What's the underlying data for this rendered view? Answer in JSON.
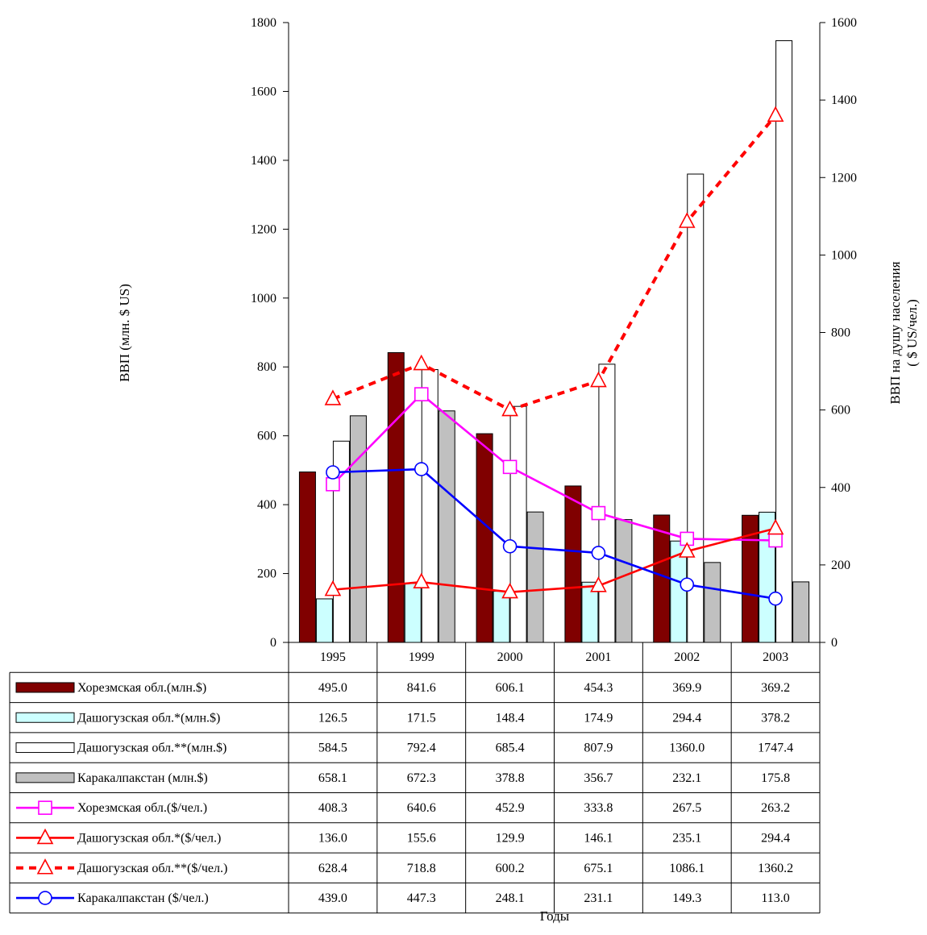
{
  "chart_data": {
    "type": "bar",
    "categories": [
      "1995",
      "1999",
      "2000",
      "2001",
      "2002",
      "2003"
    ],
    "xlabel": "Годы",
    "ylabel": "ВВП (млн. $ US)",
    "y2label_line1": "ВВП на душу населения",
    "y2label_line2": "( $ US/чел.)",
    "ylim": [
      0,
      1800
    ],
    "y2lim": [
      0,
      1600
    ],
    "yticks": [
      0,
      200,
      400,
      600,
      800,
      1000,
      1200,
      1400,
      1600,
      1800
    ],
    "y2ticks": [
      0,
      200,
      400,
      600,
      800,
      1000,
      1200,
      1400,
      1600
    ],
    "grid": false,
    "legend": "data-table-below",
    "series": [
      {
        "name": "Хорезмская обл.(млн.$)",
        "kind": "bar",
        "axis": "left",
        "color": "#800000",
        "values": [
          "495.0",
          "841.6",
          "606.1",
          "454.3",
          "369.9",
          "369.2"
        ]
      },
      {
        "name": "Дашогузская обл.*(млн.$)",
        "kind": "bar",
        "axis": "left",
        "color": "#ccffff",
        "values": [
          "126.5",
          "171.5",
          "148.4",
          "174.9",
          "294.4",
          "378.2"
        ]
      },
      {
        "name": "Дашогузская обл.**(млн.$)",
        "kind": "bar",
        "axis": "left",
        "color": "#ffffff",
        "values": [
          "584.5",
          "792.4",
          "685.4",
          "807.9",
          "1360.0",
          "1747.4"
        ]
      },
      {
        "name": "Каракалпакстан (млн.$)",
        "kind": "bar",
        "axis": "left",
        "color": "#c0c0c0",
        "values": [
          "658.1",
          "672.3",
          "378.8",
          "356.7",
          "232.1",
          "175.8"
        ]
      },
      {
        "name": "Хорезмская обл.($/чел.)",
        "kind": "line",
        "axis": "right",
        "color": "#ff00ff",
        "marker": "square",
        "dash": false,
        "values": [
          "408.3",
          "640.6",
          "452.9",
          "333.8",
          "267.5",
          "263.2"
        ]
      },
      {
        "name": "Дашогузская обл.*($/чел.)",
        "kind": "line",
        "axis": "right",
        "color": "#ff0000",
        "marker": "triangle",
        "dash": false,
        "values": [
          "136.0",
          "155.6",
          "129.9",
          "146.1",
          "235.1",
          "294.4"
        ]
      },
      {
        "name": "Дашогузская обл.**($/чел.)",
        "kind": "line",
        "axis": "right",
        "color": "#ff0000",
        "marker": "triangle",
        "dash": true,
        "values": [
          "628.4",
          "718.8",
          "600.2",
          "675.1",
          "1086.1",
          "1360.2"
        ]
      },
      {
        "name": "Каракалпакстан ($/чел.)",
        "kind": "line",
        "axis": "right",
        "color": "#0000ff",
        "marker": "circle",
        "dash": false,
        "values": [
          "439.0",
          "447.3",
          "248.1",
          "231.1",
          "149.3",
          "113.0"
        ]
      }
    ]
  }
}
